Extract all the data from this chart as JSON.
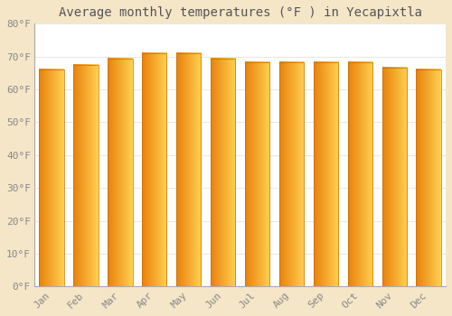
{
  "months": [
    "Jan",
    "Feb",
    "Mar",
    "Apr",
    "May",
    "Jun",
    "Jul",
    "Aug",
    "Sep",
    "Oct",
    "Nov",
    "Dec"
  ],
  "values": [
    66.2,
    67.5,
    69.3,
    71.1,
    71.1,
    69.3,
    68.2,
    68.2,
    68.2,
    68.2,
    66.7,
    66.2
  ],
  "title": "Average monthly temperatures (°F ) in Yecapixtla",
  "ylabel_ticks": [
    "0°F",
    "10°F",
    "20°F",
    "30°F",
    "40°F",
    "50°F",
    "60°F",
    "70°F",
    "80°F"
  ],
  "ytick_vals": [
    0,
    10,
    20,
    30,
    40,
    50,
    60,
    70,
    80
  ],
  "ylim": [
    0,
    80
  ],
  "bg_color": "#f5e6c8",
  "plot_bg_color": "#ffffff",
  "grid_color": "#e8e8e8",
  "bar_color_left": "#E8820C",
  "bar_color_right": "#FFD050",
  "title_fontsize": 10,
  "tick_fontsize": 8,
  "bar_width": 0.72
}
